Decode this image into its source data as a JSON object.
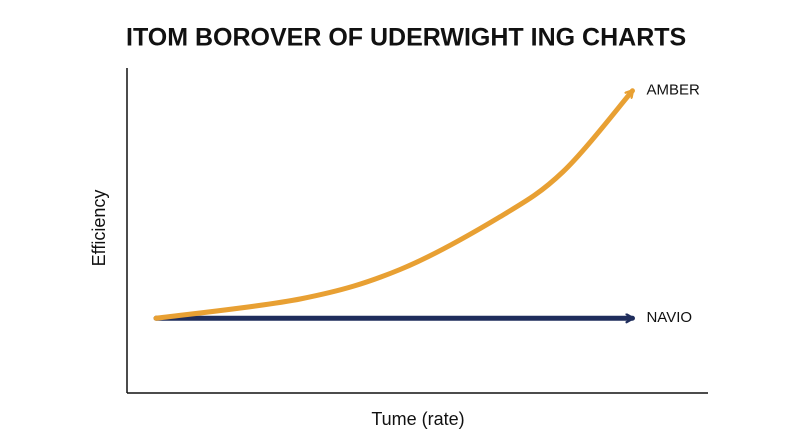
{
  "chart_data": {
    "type": "line",
    "title": "ITOM BOROVER OF UDERWIGHT ING CHARTS",
    "x_label": "Tume (rate)",
    "y_label": "Efficiency",
    "x": [
      5,
      30,
      47,
      64,
      75,
      87
    ],
    "xlim": [
      0,
      100
    ],
    "ylim": [
      0,
      100
    ],
    "series": [
      {
        "name": "AMBER",
        "color": "#e8a033",
        "values": [
          23,
          29,
          38,
          54,
          68,
          93
        ]
      },
      {
        "name": "NAVIO",
        "color": "#1f2d5c",
        "values": [
          23,
          23,
          23,
          23,
          23,
          23
        ]
      }
    ]
  }
}
